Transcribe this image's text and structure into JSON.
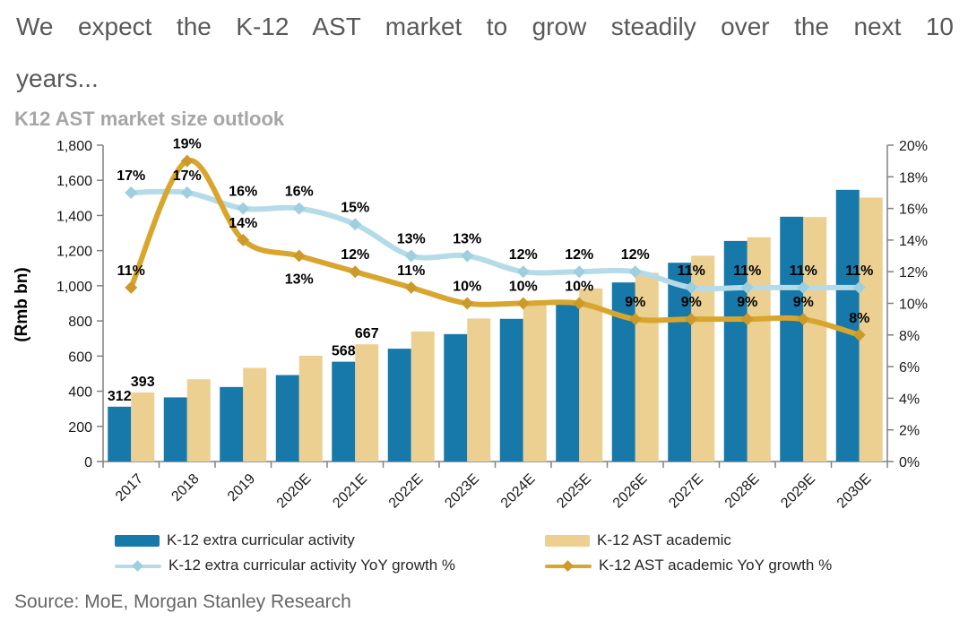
{
  "page": {
    "title_lines": [
      "We expect the K-12 AST market to grow steadily over the next 10",
      "years..."
    ],
    "source": "Source: MoE, Morgan Stanley Research"
  },
  "chart_data": {
    "type": "bar+line combo",
    "title": "K12 AST market size outlook",
    "categories": [
      "2017",
      "2018",
      "2019",
      "2020E",
      "2021E",
      "2022E",
      "2023E",
      "2024E",
      "2025E",
      "2026E",
      "2027E",
      "2028E",
      "2029E",
      "2030E"
    ],
    "left_axis": {
      "label": "(Rmb bn)",
      "min": 0,
      "max": 1800,
      "step": 200
    },
    "right_axis": {
      "min": 0,
      "max": 20,
      "step": 2,
      "suffix": "%"
    },
    "grid": false,
    "legend_position": "bottom",
    "series": [
      {
        "name": "K-12 extra curricular activity",
        "type": "bar",
        "axis": "left",
        "color": "#1779a9",
        "values": [
          312,
          365,
          424,
          492,
          568,
          642,
          725,
          812,
          910,
          1019,
          1131,
          1255,
          1393,
          1546
        ],
        "value_labels": [
          "312",
          null,
          null,
          null,
          "568",
          null,
          null,
          null,
          null,
          null,
          null,
          null,
          null,
          null
        ]
      },
      {
        "name": "K-12 AST academic",
        "type": "bar",
        "axis": "left",
        "color": "#ebd092",
        "values": [
          393,
          468,
          533,
          602,
          667,
          740,
          814,
          896,
          985,
          1074,
          1171,
          1276,
          1391,
          1502
        ],
        "value_labels": [
          "393",
          null,
          null,
          null,
          "667",
          null,
          null,
          null,
          null,
          null,
          null,
          null,
          null,
          null
        ]
      },
      {
        "name": "K-12 extra curricular activity YoY growth %",
        "type": "line",
        "axis": "right",
        "color": "#b5dbe8",
        "marker_color": "#9dcfdf",
        "values": [
          17,
          17,
          16,
          16,
          15,
          13,
          13,
          12,
          12,
          12,
          11,
          11,
          11,
          11
        ],
        "point_labels": [
          "17%",
          "17%",
          "16%",
          "16%",
          "15%",
          "13%",
          "13%",
          "12%",
          "12%",
          "12%",
          "11%",
          "11%",
          "11%",
          "11%"
        ],
        "labels_below": []
      },
      {
        "name": "K-12 AST academic YoY growth %",
        "type": "line",
        "axis": "right",
        "color": "#d8a62f",
        "marker_color": "#cc9a28",
        "values": [
          11,
          19,
          14,
          13,
          12,
          11,
          10,
          10,
          10,
          9,
          9,
          9,
          9,
          8
        ],
        "point_labels": [
          "11%",
          "19%",
          "14%",
          "13%",
          "12%",
          "11%",
          "10%",
          "10%",
          "10%",
          "9%",
          "9%",
          "9%",
          "9%",
          "8%"
        ],
        "labels_below": [
          3
        ]
      }
    ]
  }
}
